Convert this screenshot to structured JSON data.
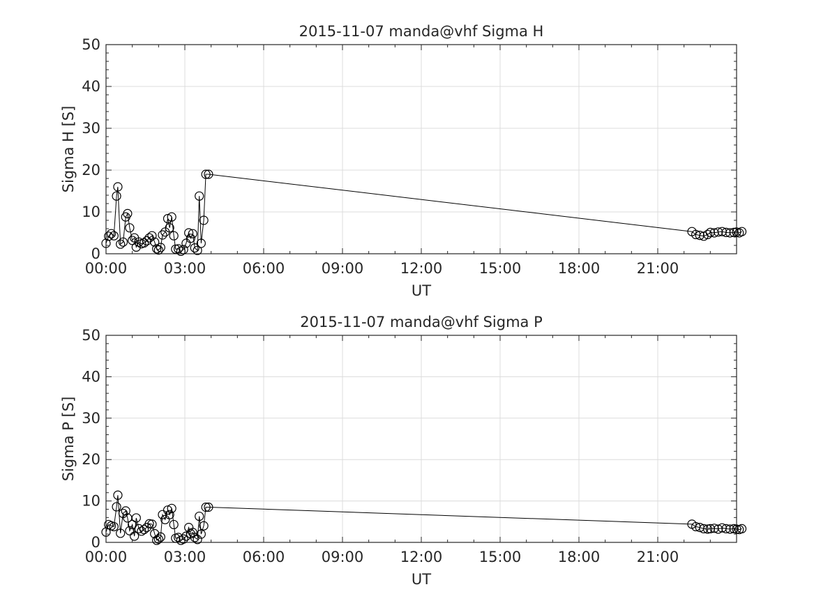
{
  "chart_data": [
    {
      "type": "line",
      "title": "2015-11-07  manda@vhf Sigma H",
      "xlabel": "UT",
      "ylabel": "Sigma H [S]",
      "xlim": [
        0,
        24
      ],
      "ylim": [
        0,
        50
      ],
      "x_ticks": [
        "00:00",
        "03:00",
        "06:00",
        "09:00",
        "12:00",
        "15:00",
        "18:00",
        "21:00"
      ],
      "y_ticks": [
        "0",
        "10",
        "20",
        "30",
        "40",
        "50"
      ],
      "grid": true,
      "marker": "open-circle",
      "series": [
        {
          "x": [
            0.0,
            0.1,
            0.2,
            0.3,
            0.4,
            0.45,
            0.55,
            0.65,
            0.75,
            0.82,
            0.9,
            1.0,
            1.08,
            1.15,
            1.25,
            1.35,
            1.45,
            1.55,
            1.65,
            1.75,
            1.85,
            1.93,
            2.0,
            2.08,
            2.15,
            2.25,
            2.35,
            2.42,
            2.5,
            2.58,
            2.65,
            2.75,
            2.85,
            2.95,
            3.05,
            3.15,
            3.22,
            3.3,
            3.38,
            3.48,
            3.55,
            3.62,
            3.72,
            3.8,
            3.9,
            22.3,
            22.45,
            22.6,
            22.75,
            22.9,
            23.0,
            23.15,
            23.3,
            23.45,
            23.6,
            23.75,
            23.9,
            24.0,
            24.1,
            24.2
          ],
          "y": [
            2.5,
            4.2,
            4.8,
            4.3,
            13.8,
            16.0,
            2.3,
            2.8,
            8.8,
            9.6,
            6.2,
            3.2,
            3.8,
            1.6,
            2.8,
            2.4,
            2.6,
            3.1,
            3.8,
            4.3,
            2.8,
            1.2,
            0.9,
            1.5,
            4.5,
            5.2,
            8.4,
            6.2,
            8.8,
            4.3,
            1.1,
            1.2,
            0.6,
            1.0,
            2.5,
            5.0,
            3.7,
            4.8,
            1.4,
            0.8,
            13.8,
            2.5,
            8.0,
            19.0,
            19.0,
            5.3,
            4.6,
            4.4,
            4.2,
            4.6,
            5.1,
            5.0,
            5.2,
            5.3,
            5.1,
            5.0,
            5.1,
            5.2,
            5.0,
            5.3
          ]
        }
      ]
    },
    {
      "type": "line",
      "title": "2015-11-07  manda@vhf Sigma P",
      "xlabel": "UT",
      "ylabel": "Sigma P [S]",
      "xlim": [
        0,
        24
      ],
      "ylim": [
        0,
        50
      ],
      "x_ticks": [
        "00:00",
        "03:00",
        "06:00",
        "09:00",
        "12:00",
        "15:00",
        "18:00",
        "21:00"
      ],
      "y_ticks": [
        "0",
        "10",
        "20",
        "30",
        "40",
        "50"
      ],
      "grid": true,
      "marker": "open-circle",
      "series": [
        {
          "x": [
            0.0,
            0.1,
            0.2,
            0.3,
            0.4,
            0.45,
            0.55,
            0.65,
            0.75,
            0.82,
            0.9,
            1.0,
            1.08,
            1.15,
            1.25,
            1.35,
            1.45,
            1.55,
            1.65,
            1.75,
            1.85,
            1.93,
            2.0,
            2.08,
            2.15,
            2.25,
            2.35,
            2.42,
            2.5,
            2.58,
            2.65,
            2.75,
            2.85,
            2.95,
            3.05,
            3.15,
            3.22,
            3.3,
            3.38,
            3.48,
            3.55,
            3.62,
            3.72,
            3.8,
            3.9,
            22.3,
            22.45,
            22.6,
            22.75,
            22.9,
            23.0,
            23.15,
            23.3,
            23.45,
            23.6,
            23.75,
            23.9,
            24.0,
            24.1,
            24.2
          ],
          "y": [
            2.5,
            4.3,
            4.0,
            3.8,
            8.6,
            11.4,
            2.2,
            7.0,
            7.6,
            5.9,
            2.8,
            4.3,
            1.5,
            5.9,
            3.3,
            2.7,
            3.1,
            3.6,
            4.5,
            4.4,
            2.1,
            0.5,
            0.8,
            1.3,
            6.7,
            5.5,
            7.8,
            6.7,
            8.2,
            4.3,
            1.0,
            1.2,
            0.5,
            0.8,
            1.5,
            3.6,
            2.1,
            2.4,
            1.2,
            0.7,
            6.3,
            2.0,
            4.0,
            8.5,
            8.5,
            4.4,
            3.8,
            3.6,
            3.3,
            3.2,
            3.3,
            3.4,
            3.2,
            3.5,
            3.3,
            3.2,
            3.3,
            3.2,
            3.1,
            3.3
          ]
        }
      ]
    }
  ]
}
